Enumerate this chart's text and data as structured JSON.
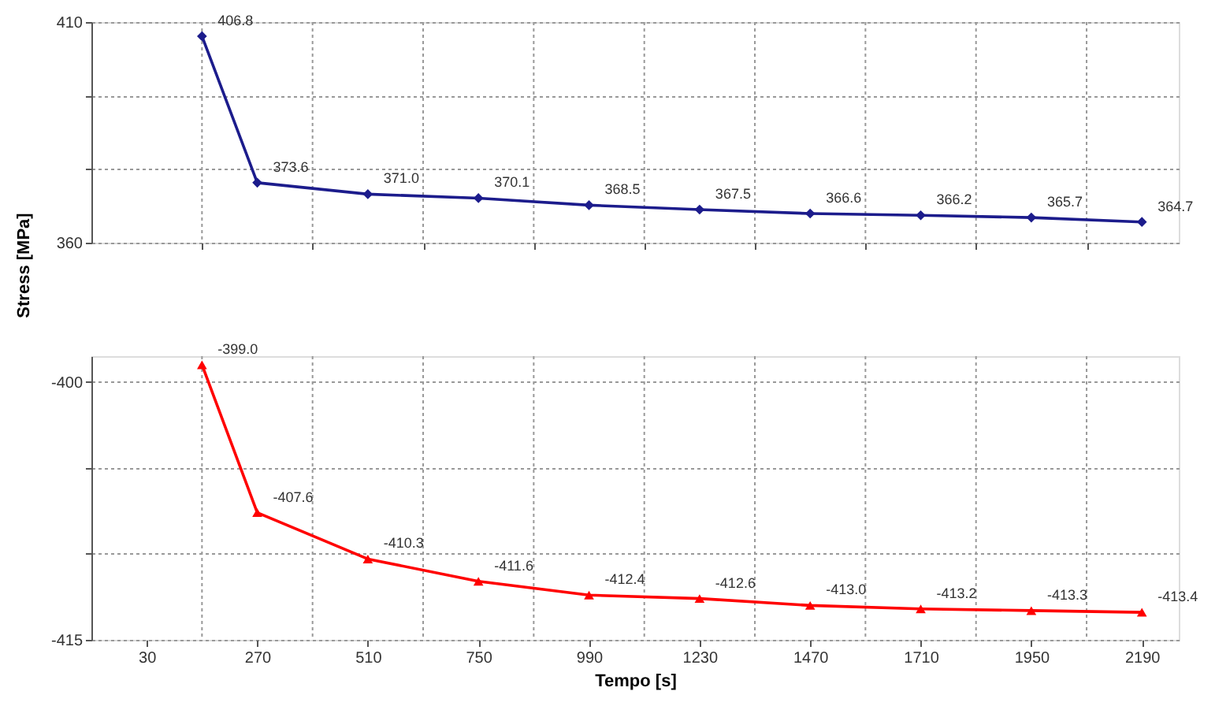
{
  "chart_data": [
    {
      "type": "line",
      "ylabel": "Stress [MPa]",
      "x": [
        150,
        270,
        510,
        750,
        990,
        1230,
        1470,
        1710,
        1950,
        2190
      ],
      "series": [
        {
          "color": "#1c1c8c",
          "values": [
            406.8,
            373.6,
            371.0,
            370.1,
            368.5,
            367.5,
            366.6,
            366.2,
            365.7,
            364.7
          ]
        }
      ],
      "xlim": [
        -90,
        2270
      ],
      "xticks": [
        {
          "value": 150,
          "label": null
        },
        {
          "value": 390,
          "label": null
        },
        {
          "value": 630,
          "label": null
        },
        {
          "value": 870,
          "label": null
        },
        {
          "value": 1110,
          "label": null
        },
        {
          "value": 1350,
          "label": null
        },
        {
          "value": 1590,
          "label": null
        },
        {
          "value": 1830,
          "label": null
        },
        {
          "value": 2070,
          "label": null
        }
      ],
      "ylim": [
        360,
        410
      ],
      "yticks": [
        360,
        {
          "value": 376.7,
          "label": null
        },
        {
          "value": 393.3,
          "label": null
        },
        410
      ],
      "grid": true,
      "marker": "diamond",
      "value_labels": [
        "406.8",
        "373.6",
        "371.0",
        "370.1",
        "368.5",
        "367.5",
        "366.6",
        "366.2",
        "365.7",
        "364.7"
      ],
      "tick_labels": "y"
    },
    {
      "type": "line",
      "xlabel": "Tempo [s]",
      "x": [
        150,
        270,
        510,
        750,
        990,
        1230,
        1470,
        1710,
        1950,
        2190
      ],
      "series": [
        {
          "color": "#ff0000",
          "values": [
            -399.0,
            -407.6,
            -410.3,
            -411.6,
            -412.4,
            -412.6,
            -413.0,
            -413.2,
            -413.3,
            -413.4
          ]
        }
      ],
      "xlim": [
        -90,
        2270
      ],
      "xticks": [
        30,
        {
          "value": 150,
          "label": null
        },
        270,
        {
          "value": 390,
          "label": null
        },
        510,
        {
          "value": 630,
          "label": null
        },
        750,
        {
          "value": 870,
          "label": null
        },
        990,
        {
          "value": 1110,
          "label": null
        },
        1230,
        {
          "value": 1350,
          "label": null
        },
        1470,
        {
          "value": 1590,
          "label": null
        },
        1710,
        {
          "value": 1830,
          "label": null
        },
        1950,
        {
          "value": 2070,
          "label": null
        },
        2190
      ],
      "ylim": [
        -415,
        -398.5
      ],
      "yticks": [
        -415,
        {
          "value": -410,
          "label": null
        },
        {
          "value": -405,
          "label": null
        },
        -400
      ],
      "grid": true,
      "marker": "triangle",
      "value_labels": [
        "-399.0",
        "-407.6",
        "-410.3",
        "-411.6",
        "-412.4",
        "-412.6",
        "-413.0",
        "-413.2",
        "-413.3",
        "-413.4"
      ]
    }
  ]
}
